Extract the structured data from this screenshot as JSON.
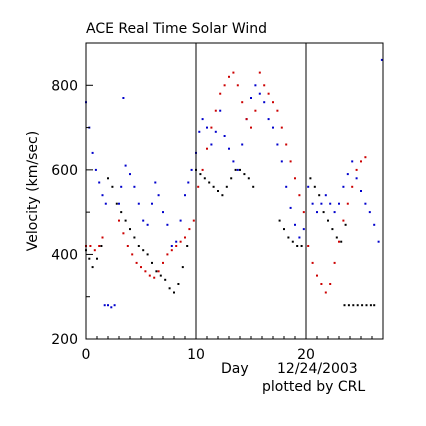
{
  "chart_data": {
    "type": "scatter",
    "title": "ACE Real Time Solar Wind",
    "ylabel": "Velocity (km/sec)",
    "xlabel": "Day",
    "date_label": "12/24/2003",
    "credit": "plotted by CRL",
    "xlim": [
      0,
      27
    ],
    "ylim": [
      200,
      900
    ],
    "x_ticks": [
      0,
      10,
      20
    ],
    "x_tick_labels": [
      "0",
      "10",
      "20"
    ],
    "y_ticks": [
      200,
      400,
      600,
      800
    ],
    "y_tick_labels": [
      "200",
      "400",
      "600",
      "800"
    ],
    "rotation_markers": [
      10,
      20
    ],
    "grid": false,
    "series": [
      {
        "color": "#0000cc",
        "points": [
          [
            0.0,
            760
          ],
          [
            0.3,
            700
          ],
          [
            0.6,
            640
          ],
          [
            0.9,
            600
          ],
          [
            1.2,
            570
          ],
          [
            1.5,
            540
          ],
          [
            1.8,
            520
          ],
          [
            1.7,
            280
          ],
          [
            2.0,
            280
          ],
          [
            2.3,
            275
          ],
          [
            2.6,
            280
          ],
          [
            3.0,
            520
          ],
          [
            3.2,
            560
          ],
          [
            3.4,
            770
          ],
          [
            3.6,
            610
          ],
          [
            4.0,
            590
          ],
          [
            4.4,
            560
          ],
          [
            4.8,
            520
          ],
          [
            5.2,
            480
          ],
          [
            5.6,
            470
          ],
          [
            6.0,
            520
          ],
          [
            6.3,
            570
          ],
          [
            6.6,
            540
          ],
          [
            7.0,
            500
          ],
          [
            7.4,
            470
          ],
          [
            7.8,
            420
          ],
          [
            8.2,
            430
          ],
          [
            8.6,
            480
          ],
          [
            9.0,
            540
          ],
          [
            9.3,
            570
          ],
          [
            9.6,
            600
          ],
          [
            10.0,
            640
          ],
          [
            10.3,
            690
          ],
          [
            10.6,
            720
          ],
          [
            11.0,
            700
          ],
          [
            11.4,
            660
          ],
          [
            11.8,
            690
          ],
          [
            12.2,
            740
          ],
          [
            12.6,
            680
          ],
          [
            13.0,
            650
          ],
          [
            13.4,
            620
          ],
          [
            13.8,
            600
          ],
          [
            14.2,
            660
          ],
          [
            14.6,
            720
          ],
          [
            15.0,
            770
          ],
          [
            15.4,
            800
          ],
          [
            15.8,
            780
          ],
          [
            16.2,
            760
          ],
          [
            16.6,
            720
          ],
          [
            17.0,
            700
          ],
          [
            17.4,
            660
          ],
          [
            17.8,
            620
          ],
          [
            18.2,
            560
          ],
          [
            18.6,
            510
          ],
          [
            19.0,
            470
          ],
          [
            19.4,
            440
          ],
          [
            19.8,
            460
          ],
          [
            20.2,
            560
          ],
          [
            20.6,
            520
          ],
          [
            21.0,
            500
          ],
          [
            21.4,
            520
          ],
          [
            21.8,
            540
          ],
          [
            22.2,
            520
          ],
          [
            22.6,
            500
          ],
          [
            23.0,
            520
          ],
          [
            23.4,
            560
          ],
          [
            23.8,
            590
          ],
          [
            24.2,
            620
          ],
          [
            24.6,
            580
          ],
          [
            25.0,
            550
          ],
          [
            25.4,
            520
          ],
          [
            25.8,
            500
          ],
          [
            26.2,
            470
          ],
          [
            26.6,
            430
          ],
          [
            26.9,
            860
          ]
        ]
      },
      {
        "color": "#cc0000",
        "points": [
          [
            0.0,
            420
          ],
          [
            0.4,
            420
          ],
          [
            0.8,
            410
          ],
          [
            1.2,
            420
          ],
          [
            1.5,
            440
          ],
          [
            3.0,
            480
          ],
          [
            3.4,
            450
          ],
          [
            3.8,
            420
          ],
          [
            4.2,
            400
          ],
          [
            4.6,
            380
          ],
          [
            5.0,
            370
          ],
          [
            5.4,
            360
          ],
          [
            5.8,
            350
          ],
          [
            6.2,
            345
          ],
          [
            6.6,
            360
          ],
          [
            7.0,
            380
          ],
          [
            7.4,
            400
          ],
          [
            7.8,
            410
          ],
          [
            8.2,
            420
          ],
          [
            8.6,
            430
          ],
          [
            9.0,
            440
          ],
          [
            9.4,
            460
          ],
          [
            9.8,
            480
          ],
          [
            10.2,
            560
          ],
          [
            10.6,
            600
          ],
          [
            11.0,
            650
          ],
          [
            11.4,
            700
          ],
          [
            11.8,
            740
          ],
          [
            12.2,
            780
          ],
          [
            12.6,
            800
          ],
          [
            13.0,
            820
          ],
          [
            13.4,
            830
          ],
          [
            13.8,
            800
          ],
          [
            14.2,
            760
          ],
          [
            14.6,
            720
          ],
          [
            15.0,
            700
          ],
          [
            15.4,
            740
          ],
          [
            15.8,
            830
          ],
          [
            16.2,
            800
          ],
          [
            16.6,
            780
          ],
          [
            17.0,
            760
          ],
          [
            17.4,
            740
          ],
          [
            17.8,
            700
          ],
          [
            18.2,
            660
          ],
          [
            18.6,
            620
          ],
          [
            19.0,
            580
          ],
          [
            19.4,
            540
          ],
          [
            19.8,
            500
          ],
          [
            20.2,
            420
          ],
          [
            20.6,
            380
          ],
          [
            21.0,
            350
          ],
          [
            21.4,
            330
          ],
          [
            21.8,
            310
          ],
          [
            22.2,
            330
          ],
          [
            22.6,
            380
          ],
          [
            23.0,
            430
          ],
          [
            23.4,
            480
          ],
          [
            23.8,
            520
          ],
          [
            24.2,
            560
          ],
          [
            24.6,
            600
          ],
          [
            25.0,
            620
          ],
          [
            25.4,
            630
          ]
        ]
      },
      {
        "color": "#000000",
        "points": [
          [
            0.0,
            410
          ],
          [
            0.3,
            390
          ],
          [
            0.6,
            370
          ],
          [
            1.0,
            390
          ],
          [
            1.4,
            420
          ],
          [
            2.0,
            580
          ],
          [
            2.4,
            560
          ],
          [
            2.8,
            520
          ],
          [
            3.2,
            500
          ],
          [
            3.6,
            480
          ],
          [
            4.0,
            460
          ],
          [
            4.4,
            440
          ],
          [
            4.8,
            420
          ],
          [
            5.2,
            410
          ],
          [
            5.6,
            400
          ],
          [
            6.0,
            380
          ],
          [
            6.4,
            360
          ],
          [
            6.8,
            350
          ],
          [
            7.2,
            340
          ],
          [
            7.6,
            320
          ],
          [
            8.0,
            310
          ],
          [
            8.4,
            330
          ],
          [
            8.8,
            370
          ],
          [
            9.2,
            420
          ],
          [
            10.0,
            600
          ],
          [
            10.4,
            590
          ],
          [
            10.8,
            580
          ],
          [
            11.2,
            570
          ],
          [
            11.6,
            560
          ],
          [
            12.0,
            550
          ],
          [
            12.4,
            540
          ],
          [
            12.8,
            560
          ],
          [
            13.2,
            580
          ],
          [
            13.6,
            600
          ],
          [
            14.0,
            600
          ],
          [
            14.4,
            590
          ],
          [
            14.8,
            580
          ],
          [
            15.2,
            560
          ],
          [
            17.6,
            480
          ],
          [
            18.0,
            460
          ],
          [
            18.4,
            440
          ],
          [
            18.8,
            430
          ],
          [
            19.2,
            420
          ],
          [
            19.6,
            420
          ],
          [
            20.4,
            580
          ],
          [
            20.8,
            560
          ],
          [
            21.2,
            540
          ],
          [
            21.6,
            500
          ],
          [
            22.0,
            480
          ],
          [
            22.4,
            460
          ],
          [
            22.8,
            440
          ],
          [
            23.2,
            430
          ],
          [
            23.6,
            470
          ],
          [
            23.5,
            280
          ],
          [
            23.9,
            280
          ],
          [
            24.3,
            280
          ],
          [
            24.7,
            280
          ],
          [
            25.1,
            280
          ],
          [
            25.5,
            280
          ],
          [
            25.9,
            280
          ],
          [
            26.2,
            280
          ]
        ]
      }
    ]
  }
}
